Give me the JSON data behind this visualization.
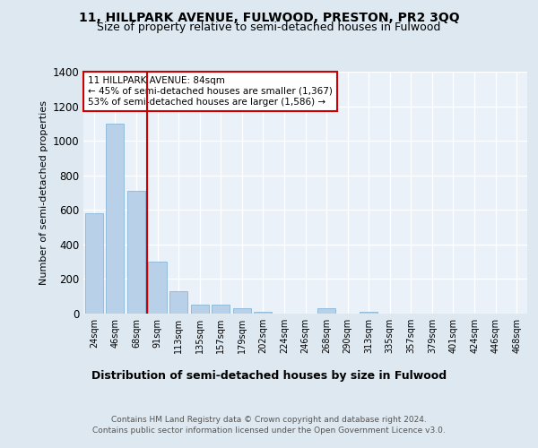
{
  "title": "11, HILLPARK AVENUE, FULWOOD, PRESTON, PR2 3QQ",
  "subtitle": "Size of property relative to semi-detached houses in Fulwood",
  "xlabel": "Distribution of semi-detached houses by size in Fulwood",
  "ylabel": "Number of semi-detached properties",
  "footer1": "Contains HM Land Registry data © Crown copyright and database right 2024.",
  "footer2": "Contains public sector information licensed under the Open Government Licence v3.0.",
  "categories": [
    "24sqm",
    "46sqm",
    "68sqm",
    "91sqm",
    "113sqm",
    "135sqm",
    "157sqm",
    "179sqm",
    "202sqm",
    "224sqm",
    "246sqm",
    "268sqm",
    "290sqm",
    "313sqm",
    "335sqm",
    "357sqm",
    "379sqm",
    "401sqm",
    "424sqm",
    "446sqm",
    "468sqm"
  ],
  "values": [
    580,
    1100,
    710,
    300,
    130,
    50,
    50,
    30,
    10,
    0,
    0,
    30,
    0,
    10,
    0,
    0,
    0,
    0,
    0,
    0,
    0
  ],
  "bar_color": "#b8d0e8",
  "bar_edge_color": "#7bafd4",
  "red_line_x": 2.5,
  "annotation_text_line1": "11 HILLPARK AVENUE: 84sqm",
  "annotation_text_line2": "← 45% of semi-detached houses are smaller (1,367)",
  "annotation_text_line3": "53% of semi-detached houses are larger (1,586) →",
  "ylim": [
    0,
    1400
  ],
  "yticks": [
    0,
    200,
    400,
    600,
    800,
    1000,
    1200,
    1400
  ],
  "background_color": "#dde8f0",
  "plot_bg_color": "#eaf1f8",
  "grid_color": "#ffffff",
  "title_fontsize": 10,
  "subtitle_fontsize": 9,
  "annotation_box_color": "#ffffff",
  "annotation_box_edge_color": "#cc0000",
  "red_line_color": "#cc0000"
}
